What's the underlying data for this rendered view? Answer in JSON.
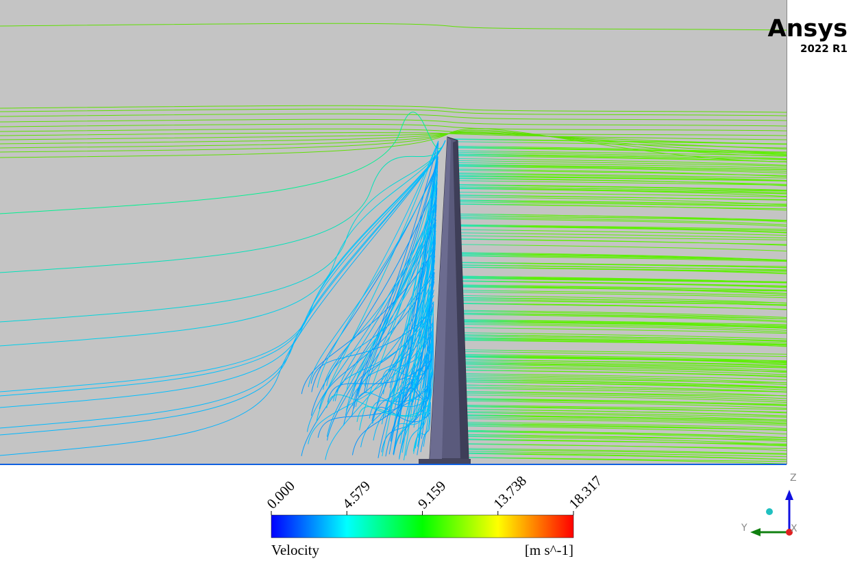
{
  "logo": {
    "brand": "Ansys",
    "version": "2022 R1"
  },
  "legend": {
    "title": "Velocity",
    "unit": "[m s^-1]",
    "ticks": [
      {
        "value": 0,
        "label": "0.000"
      },
      {
        "value": 4.579,
        "label": "4.579"
      },
      {
        "value": 9.159,
        "label": "9.159"
      },
      {
        "value": 13.738,
        "label": "13.738"
      },
      {
        "value": 18.317,
        "label": "18.317"
      }
    ]
  },
  "triad": {
    "z": "Z",
    "y": "Y",
    "x": "X"
  }
}
